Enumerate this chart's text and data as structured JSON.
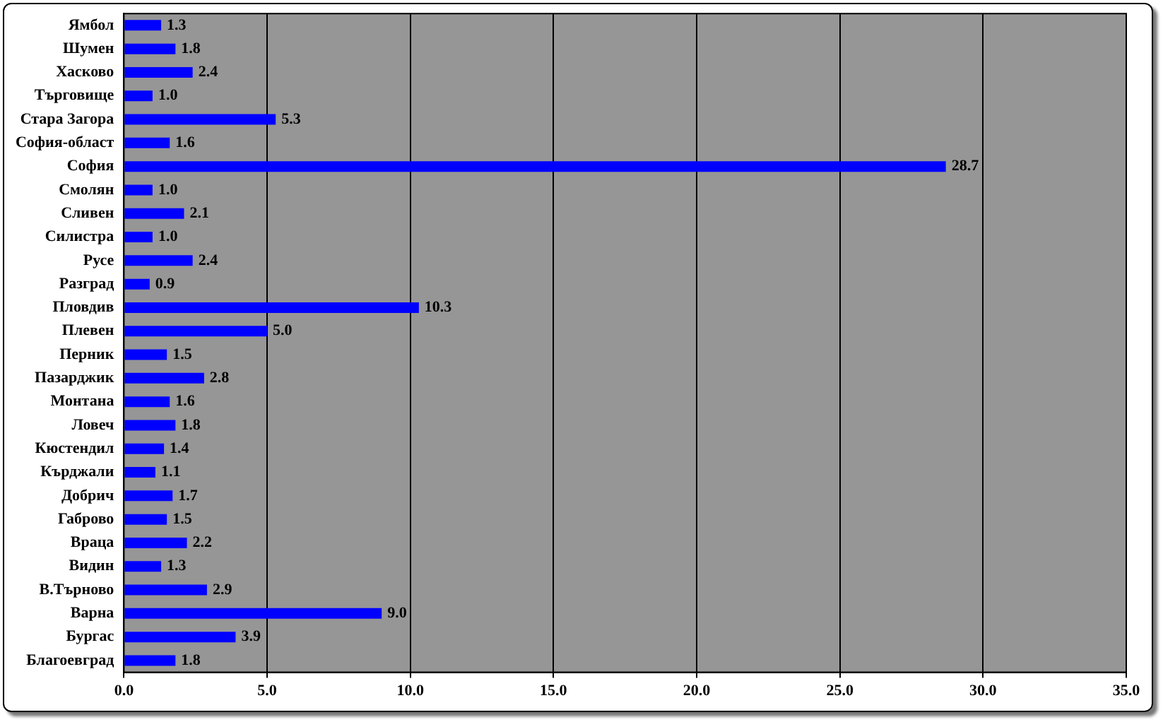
{
  "chart_data": {
    "type": "bar",
    "orientation": "horizontal",
    "categories": [
      "Ямбол",
      "Шумен",
      "Хасково",
      "Търговище",
      "Стара Загора",
      "София-област",
      "София",
      "Смолян",
      "Сливен",
      "Силистра",
      "Русе",
      "Разград",
      "Пловдив",
      "Плевен",
      "Перник",
      "Пазарджик",
      "Монтана",
      "Ловеч",
      "Кюстендил",
      "Кърджали",
      "Добрич",
      "Габрово",
      "Враца",
      "Видин",
      "В.Търново",
      "Варна",
      "Бургас",
      "Благоевград"
    ],
    "values": [
      1.3,
      1.8,
      2.4,
      1.0,
      5.3,
      1.6,
      28.7,
      1.0,
      2.1,
      1.0,
      2.4,
      0.9,
      10.3,
      5.0,
      1.5,
      2.8,
      1.6,
      1.8,
      1.4,
      1.1,
      1.7,
      1.5,
      2.2,
      1.3,
      2.9,
      9.0,
      3.9,
      1.8
    ],
    "value_labels": [
      "1.3",
      "1.8",
      "2.4",
      "1.0",
      "5.3",
      "1.6",
      "28.7",
      "1.0",
      "2.1",
      "1.0",
      "2.4",
      "0.9",
      "10.3",
      "5.0",
      "1.5",
      "2.8",
      "1.6",
      "1.8",
      "1.4",
      "1.1",
      "1.7",
      "1.5",
      "2.2",
      "1.3",
      "2.9",
      "9.0",
      "3.9",
      "1.8"
    ],
    "color": "#0000ff",
    "xlim": [
      0,
      35
    ],
    "xticks": [
      {
        "value": 0,
        "label": "0.0"
      },
      {
        "value": 5,
        "label": "5.0"
      },
      {
        "value": 10,
        "label": "10.0"
      },
      {
        "value": 15,
        "label": "15.0"
      },
      {
        "value": 20,
        "label": "20.0"
      },
      {
        "value": 25,
        "label": "25.0"
      },
      {
        "value": 30,
        "label": "30.0"
      },
      {
        "value": 35,
        "label": "35.0"
      }
    ],
    "grid": "x",
    "legend": false
  }
}
